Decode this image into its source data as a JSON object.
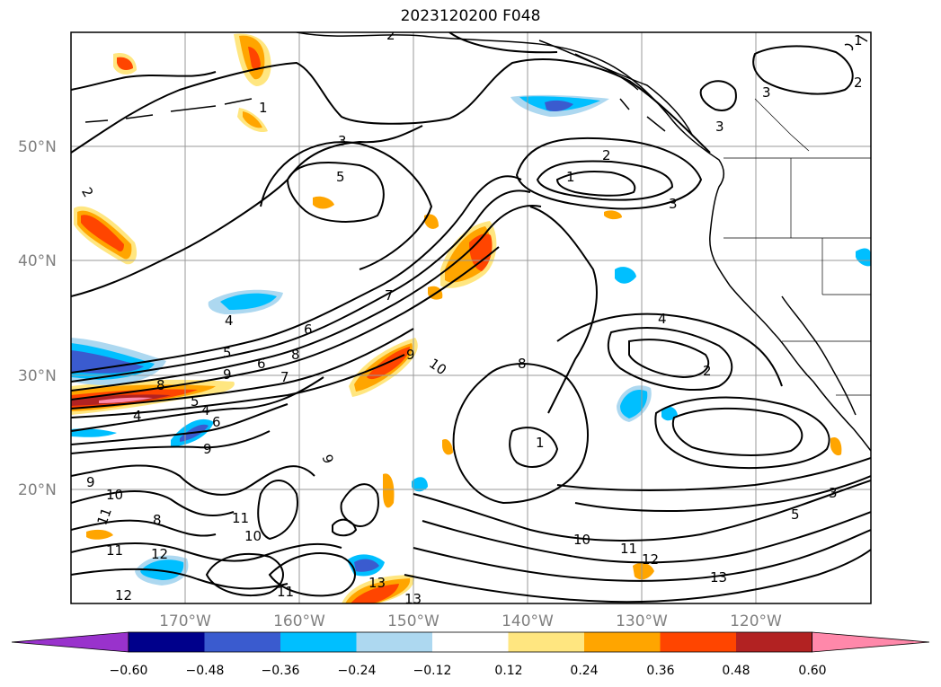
{
  "title": "2023120200 F048",
  "map": {
    "lat_labels": [
      "50°N",
      "40°N",
      "30°N",
      "20°N"
    ],
    "lon_labels": [
      "170°W",
      "160°W",
      "150°W",
      "140°W",
      "130°W",
      "120°W"
    ],
    "contour_labels": [
      "2",
      "3",
      "5",
      "1",
      "2",
      "3",
      "3",
      "3",
      "2",
      "1",
      "2",
      "1",
      "7",
      "6",
      "4",
      "5",
      "8",
      "6",
      "9",
      "10",
      "8",
      "4",
      "5",
      "7",
      "4",
      "6",
      "9",
      "9",
      "9",
      "10",
      "11",
      "12",
      "11",
      "10",
      "11",
      "12",
      "11",
      "13",
      "8",
      "9",
      "13",
      "8",
      "10",
      "11",
      "12",
      "13",
      "1",
      "5",
      "3",
      "4",
      "2"
    ]
  },
  "colorbar": {
    "ticks": [
      "−0.60",
      "−0.48",
      "−0.36",
      "−0.24",
      "−0.12",
      "0.12",
      "0.24",
      "0.36",
      "0.48",
      "0.60"
    ],
    "colors": [
      "#9932cc",
      "#00008b",
      "#3a5bcf",
      "#00bfff",
      "#add8f0",
      "#ffffff",
      "#ffe680",
      "#ffa500",
      "#ff4500",
      "#b22222",
      "#ff88aa"
    ]
  }
}
